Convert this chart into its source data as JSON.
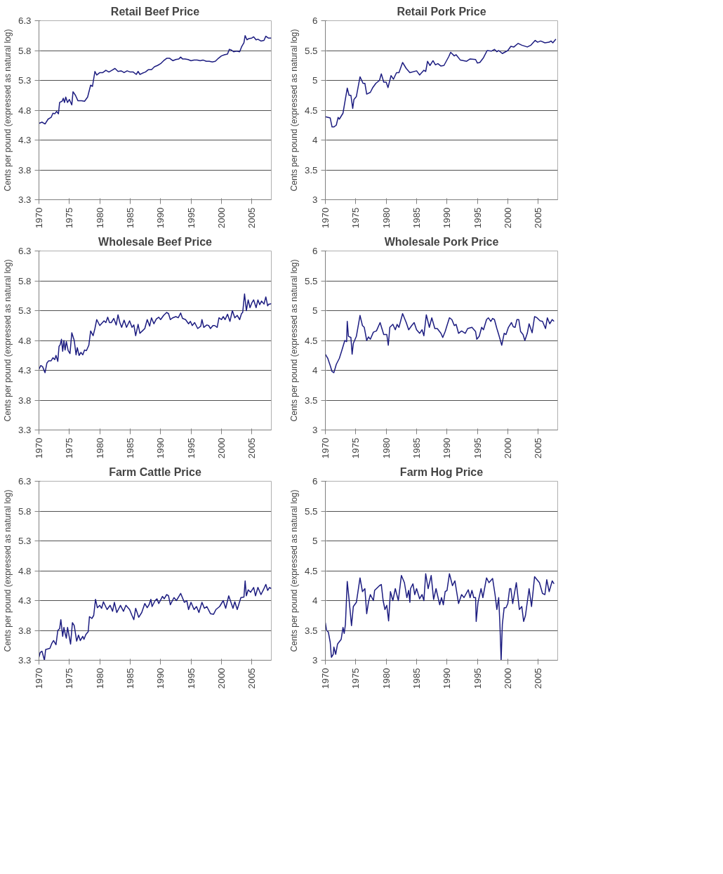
{
  "chart_data": [
    {
      "type": "line",
      "title": "Retail Beef Price",
      "ylabel": "Cents per pound (expressed as natural log)",
      "xlim": [
        1970,
        2008.2
      ],
      "xticks": [
        1970,
        1975,
        1980,
        1985,
        1990,
        1995,
        2000,
        2005
      ],
      "ylim": [
        3.3,
        6.3
      ],
      "yticks": [
        3.3,
        3.8,
        4.3,
        4.8,
        5.3,
        5.8,
        6.3
      ],
      "grid": "y",
      "line_style": "solid",
      "series": [
        {
          "color": "#1c1c80",
          "x": [
            1970,
            1970.5,
            1971,
            1971.5,
            1972,
            1972.3,
            1972.6,
            1972.9,
            1973.2,
            1973.4,
            1973.8,
            1974,
            1974.2,
            1974.4,
            1974.7,
            1975,
            1975.4,
            1975.6,
            1976,
            1976.4,
            1977,
            1977.5,
            1978,
            1978.5,
            1978.8,
            1979.2,
            1979.5,
            1980,
            1980.5,
            1981,
            1981.5,
            1982,
            1982.5,
            1983,
            1983.5,
            1984,
            1984.5,
            1985,
            1985.5,
            1986,
            1986.3,
            1986.6,
            1987,
            1987.5,
            1988,
            1988.5,
            1989,
            1989.5,
            1990,
            1990.5,
            1991,
            1991.5,
            1992,
            1992.5,
            1993,
            1993.3,
            1993.6,
            1994,
            1994.5,
            1995,
            1995.5,
            1996,
            1996.5,
            1997,
            1997.5,
            1998,
            1998.5,
            1999,
            1999.5,
            2000,
            2000.5,
            2001,
            2001.3,
            2001.6,
            2002,
            2002.5,
            2003,
            2003.3,
            2003.7,
            2003.9,
            2004.2,
            2004.5,
            2005,
            2005.3,
            2005.7,
            2006,
            2006.5,
            2007,
            2007.3,
            2007.7,
            2008.2
          ],
          "values": [
            4.58,
            4.6,
            4.57,
            4.65,
            4.68,
            4.75,
            4.74,
            4.78,
            4.74,
            4.93,
            4.95,
            5.0,
            4.93,
            5.02,
            4.93,
            4.98,
            4.89,
            5.11,
            5.05,
            4.96,
            4.96,
            4.95,
            5.02,
            5.22,
            5.2,
            5.45,
            5.39,
            5.43,
            5.43,
            5.47,
            5.44,
            5.47,
            5.5,
            5.45,
            5.46,
            5.43,
            5.46,
            5.44,
            5.44,
            5.4,
            5.45,
            5.4,
            5.42,
            5.44,
            5.48,
            5.48,
            5.53,
            5.55,
            5.58,
            5.63,
            5.67,
            5.67,
            5.63,
            5.65,
            5.66,
            5.69,
            5.66,
            5.66,
            5.65,
            5.63,
            5.64,
            5.64,
            5.63,
            5.64,
            5.62,
            5.62,
            5.61,
            5.62,
            5.67,
            5.71,
            5.73,
            5.74,
            5.82,
            5.81,
            5.78,
            5.79,
            5.78,
            5.86,
            5.93,
            6.05,
            5.98,
            6.0,
            6.01,
            6.03,
            5.98,
            5.99,
            5.96,
            5.97,
            6.04,
            6.01,
            6.01
          ]
        }
      ]
    },
    {
      "type": "line",
      "title": "Retail Pork Price",
      "ylabel": "Cents per pound (expressed as natural log)",
      "xlim": [
        1970,
        2008.2
      ],
      "xticks": [
        1970,
        1975,
        1980,
        1985,
        1990,
        1995,
        2000,
        2005
      ],
      "ylim": [
        3,
        6
      ],
      "yticks": [
        3,
        3.5,
        4,
        4.5,
        5,
        5.5,
        6
      ],
      "grid": "y",
      "line_style": "solid",
      "series": [
        {
          "color": "#1c1c80",
          "x": [
            1970,
            1970.8,
            1971.1,
            1971.4,
            1971.8,
            1972.1,
            1972.3,
            1972.9,
            1973.2,
            1973.6,
            1973.9,
            1974.2,
            1974.5,
            1974.7,
            1975.1,
            1975.7,
            1976.2,
            1976.5,
            1976.8,
            1977.4,
            1977.8,
            1978.3,
            1978.9,
            1979.2,
            1979.6,
            1980,
            1980.3,
            1980.8,
            1981.2,
            1981.7,
            1982.1,
            1982.7,
            1983.3,
            1983.9,
            1985,
            1985.5,
            1986.2,
            1986.5,
            1986.8,
            1987.2,
            1987.7,
            1988.1,
            1988.5,
            1989,
            1989.5,
            1990.3,
            1990.6,
            1991.2,
            1991.5,
            1992.2,
            1993.2,
            1993.8,
            1994.7,
            1995,
            1995.4,
            1996,
            1996.6,
            1997.3,
            1997.8,
            1998.2,
            1998.5,
            1999.1,
            2000,
            2000.5,
            2001,
            2001.7,
            2002.3,
            2003.2,
            2003.8,
            2004.5,
            2004.9,
            2005.4,
            2006.1,
            2006.8,
            2007.1,
            2007.4,
            2007.9
          ],
          "values": [
            4.39,
            4.37,
            4.22,
            4.22,
            4.25,
            4.38,
            4.35,
            4.45,
            4.63,
            4.87,
            4.75,
            4.75,
            4.53,
            4.68,
            4.73,
            5.06,
            4.95,
            4.95,
            4.77,
            4.8,
            4.88,
            4.95,
            5.0,
            5.11,
            4.97,
            4.97,
            4.88,
            5.08,
            5.02,
            5.13,
            5.13,
            5.3,
            5.2,
            5.13,
            5.16,
            5.09,
            5.17,
            5.15,
            5.32,
            5.25,
            5.33,
            5.26,
            5.28,
            5.24,
            5.25,
            5.4,
            5.47,
            5.41,
            5.43,
            5.34,
            5.32,
            5.36,
            5.35,
            5.29,
            5.3,
            5.38,
            5.5,
            5.49,
            5.52,
            5.48,
            5.5,
            5.45,
            5.5,
            5.57,
            5.56,
            5.62,
            5.59,
            5.56,
            5.59,
            5.67,
            5.64,
            5.66,
            5.63,
            5.64,
            5.66,
            5.63,
            5.69
          ]
        }
      ]
    },
    {
      "type": "line",
      "title": "Wholesale Beef Price",
      "ylabel": "Cents per pound (expressed as natural log)",
      "xlim": [
        1970,
        2008.2
      ],
      "xticks": [
        1970,
        1975,
        1980,
        1985,
        1990,
        1995,
        2000,
        2005
      ],
      "ylim": [
        3.3,
        6.3
      ],
      "yticks": [
        3.3,
        3.8,
        4.3,
        4.8,
        5.3,
        5.8,
        6.3
      ],
      "grid": "y",
      "line_style": "solid",
      "series": [
        {
          "color": "#1c1c80",
          "x": [
            1970,
            1970.3,
            1970.6,
            1971,
            1971.3,
            1971.6,
            1972,
            1972.3,
            1972.6,
            1972.8,
            1973.1,
            1973.3,
            1973.5,
            1973.7,
            1973.9,
            1974.1,
            1974.3,
            1974.5,
            1974.8,
            1975.1,
            1975.4,
            1975.8,
            1976.1,
            1976.3,
            1976.6,
            1976.9,
            1977.2,
            1977.5,
            1977.8,
            1978.2,
            1978.5,
            1978.9,
            1979.2,
            1979.5,
            1980,
            1980.7,
            1981,
            1981.3,
            1981.6,
            1981.9,
            1982.3,
            1982.7,
            1983,
            1983.3,
            1983.6,
            1984,
            1984.4,
            1984.9,
            1985.3,
            1985.6,
            1985.9,
            1986.3,
            1986.6,
            1987,
            1987.4,
            1987.8,
            1988.2,
            1988.5,
            1988.9,
            1989.3,
            1989.7,
            1990,
            1990.5,
            1991,
            1991.3,
            1991.6,
            1992,
            1992.5,
            1992.9,
            1993.3,
            1993.6,
            1994.1,
            1994.6,
            1994.9,
            1995.2,
            1995.6,
            1996.1,
            1996.6,
            1996.8,
            1997.1,
            1997.6,
            1997.9,
            1998.2,
            1998.6,
            1998.9,
            1999.3,
            1999.6,
            2000,
            2000.3,
            2000.6,
            2001,
            2001.4,
            2001.8,
            2002.2,
            2002.6,
            2003,
            2003.3,
            2003.5,
            2003.8,
            2004.1,
            2004.4,
            2004.7,
            2005,
            2005.3,
            2005.7,
            2006,
            2006.3,
            2006.6,
            2007,
            2007.3,
            2007.6,
            2007.8,
            2008,
            2008.2
          ],
          "values": [
            4.32,
            4.38,
            4.36,
            4.26,
            4.42,
            4.46,
            4.46,
            4.51,
            4.48,
            4.55,
            4.45,
            4.7,
            4.73,
            4.82,
            4.62,
            4.8,
            4.64,
            4.78,
            4.63,
            4.58,
            4.93,
            4.8,
            4.56,
            4.68,
            4.55,
            4.6,
            4.56,
            4.64,
            4.63,
            4.72,
            4.96,
            4.88,
            5.0,
            5.15,
            5.05,
            5.13,
            5.1,
            5.19,
            5.1,
            5.1,
            5.17,
            5.06,
            5.23,
            5.1,
            5.02,
            5.14,
            5.02,
            5.13,
            5.02,
            5.06,
            4.88,
            5.07,
            4.92,
            4.96,
            5.0,
            5.15,
            5.04,
            5.18,
            5.08,
            5.16,
            5.19,
            5.15,
            5.22,
            5.27,
            5.25,
            5.15,
            5.18,
            5.2,
            5.18,
            5.26,
            5.17,
            5.15,
            5.08,
            5.12,
            5.05,
            5.1,
            5.0,
            5.04,
            5.15,
            5.02,
            5.06,
            5.05,
            5.0,
            5.05,
            5.05,
            5.02,
            5.18,
            5.15,
            5.2,
            5.15,
            5.24,
            5.12,
            5.3,
            5.18,
            5.22,
            5.15,
            5.25,
            5.27,
            5.58,
            5.3,
            5.48,
            5.35,
            5.43,
            5.48,
            5.35,
            5.48,
            5.4,
            5.46,
            5.41,
            5.53,
            5.38,
            5.41,
            5.41,
            5.42
          ]
        }
      ]
    },
    {
      "type": "line",
      "title": "Wholesale Pork Price",
      "ylabel": "Cents per pound (expressed as natural log)",
      "xlim": [
        1970,
        2008.2
      ],
      "xticks": [
        1970,
        1975,
        1980,
        1985,
        1990,
        1995,
        2000,
        2005
      ],
      "ylim": [
        3,
        6
      ],
      "yticks": [
        3,
        3.5,
        4,
        4.5,
        5,
        5.5,
        6
      ],
      "grid": "y",
      "line_style": "solid",
      "series": [
        {
          "color": "#1c1c80",
          "x": [
            1970,
            1970.4,
            1970.8,
            1971.1,
            1971.4,
            1971.8,
            1972.3,
            1972.7,
            1973.2,
            1973.5,
            1973.6,
            1973.8,
            1974.2,
            1974.4,
            1974.6,
            1975.1,
            1975.7,
            1976.1,
            1976.4,
            1976.8,
            1977.1,
            1977.4,
            1977.9,
            1978.4,
            1979,
            1979.6,
            1980.1,
            1980.35,
            1980.6,
            1981.1,
            1981.5,
            1981.8,
            1982.1,
            1982.7,
            1983.3,
            1983.7,
            1984.2,
            1984.6,
            1985,
            1985.5,
            1985.9,
            1986.2,
            1986.6,
            1987.1,
            1987.5,
            1988,
            1988.4,
            1989,
            1989.3,
            1989.7,
            1990,
            1990.4,
            1990.8,
            1991.2,
            1991.5,
            1991.9,
            1992.4,
            1993,
            1993.4,
            1994.1,
            1994.7,
            1994.9,
            1995.3,
            1995.7,
            1996,
            1996.5,
            1996.8,
            1997.2,
            1997.5,
            1997.8,
            1998.2,
            1998.5,
            1999,
            1999.4,
            1999.7,
            2000.1,
            2000.6,
            2000.9,
            2001.2,
            2001.5,
            2001.8,
            2002.1,
            2002.5,
            2002.8,
            2003.2,
            2003.5,
            2004,
            2004.4,
            2004.8,
            2005.3,
            2005.7,
            2006.2,
            2006.5,
            2006.9,
            2007.3,
            2007.6
          ],
          "values": [
            4.27,
            4.2,
            4.08,
            3.98,
            3.96,
            4.1,
            4.2,
            4.33,
            4.5,
            4.48,
            4.82,
            4.57,
            4.55,
            4.27,
            4.45,
            4.57,
            4.92,
            4.75,
            4.72,
            4.5,
            4.56,
            4.52,
            4.64,
            4.66,
            4.8,
            4.6,
            4.6,
            4.42,
            4.72,
            4.77,
            4.68,
            4.77,
            4.72,
            4.95,
            4.8,
            4.68,
            4.75,
            4.8,
            4.68,
            4.62,
            4.68,
            4.58,
            4.93,
            4.72,
            4.88,
            4.7,
            4.7,
            4.62,
            4.55,
            4.65,
            4.75,
            4.88,
            4.85,
            4.75,
            4.77,
            4.62,
            4.66,
            4.62,
            4.7,
            4.72,
            4.65,
            4.52,
            4.57,
            4.72,
            4.68,
            4.85,
            4.88,
            4.82,
            4.87,
            4.85,
            4.7,
            4.6,
            4.42,
            4.62,
            4.6,
            4.72,
            4.8,
            4.73,
            4.72,
            4.85,
            4.85,
            4.65,
            4.6,
            4.5,
            4.62,
            4.78,
            4.63,
            4.9,
            4.88,
            4.83,
            4.82,
            4.7,
            4.88,
            4.78,
            4.85,
            4.82
          ]
        }
      ]
    },
    {
      "type": "line",
      "title": "Farm Cattle Price",
      "ylabel": "Cents per pound (expressed as natural log)",
      "xlim": [
        1970,
        2008.2
      ],
      "xticks": [
        1970,
        1975,
        1980,
        1985,
        1990,
        1995,
        2000,
        2005
      ],
      "ylim": [
        3.3,
        6.3
      ],
      "yticks": [
        3.3,
        3.8,
        4.3,
        4.8,
        5.3,
        5.8,
        6.3
      ],
      "grid": "y",
      "line_style": "solid",
      "series": [
        {
          "color": "#1c1c80",
          "x": [
            1970,
            1970.2,
            1970.5,
            1970.9,
            1971.1,
            1971.8,
            1972.1,
            1972.4,
            1972.8,
            1973.1,
            1973.4,
            1973.6,
            1973.9,
            1974.1,
            1974.3,
            1974.5,
            1974.7,
            1975.2,
            1975.5,
            1975.8,
            1976.2,
            1976.5,
            1976.8,
            1977.2,
            1977.4,
            1977.7,
            1978.1,
            1978.3,
            1978.7,
            1979,
            1979.3,
            1979.6,
            1980,
            1980.3,
            1980.6,
            1981.2,
            1981.7,
            1982.1,
            1982.4,
            1982.8,
            1983.4,
            1983.9,
            1984.3,
            1984.9,
            1985.3,
            1985.6,
            1985.9,
            1986.4,
            1986.9,
            1987.4,
            1987.8,
            1988.1,
            1988.4,
            1988.6,
            1989.1,
            1989.4,
            1989.7,
            1990.3,
            1990.6,
            1991,
            1991.3,
            1991.6,
            1992.2,
            1992.6,
            1993.3,
            1993.9,
            1994.3,
            1994.6,
            1995,
            1995.5,
            1995.9,
            1996.3,
            1996.8,
            1997.2,
            1997.6,
            1998.2,
            1998.7,
            1999.1,
            1999.7,
            2000,
            2000.3,
            2000.7,
            2001.2,
            2001.9,
            2002.2,
            2002.6,
            2003.2,
            2003.7,
            2003.9,
            2004.1,
            2004.4,
            2004.8,
            2005.3,
            2005.6,
            2006,
            2006.5,
            2006.9,
            2007.3,
            2007.6,
            2007.9,
            2008.2
          ],
          "values": [
            3.35,
            3.43,
            3.45,
            3.3,
            3.48,
            3.5,
            3.58,
            3.63,
            3.56,
            3.8,
            3.83,
            3.98,
            3.7,
            3.85,
            3.75,
            3.67,
            3.85,
            3.57,
            3.93,
            3.88,
            3.62,
            3.72,
            3.63,
            3.7,
            3.65,
            3.73,
            3.78,
            4.03,
            4.0,
            4.05,
            4.32,
            4.18,
            4.22,
            4.17,
            4.28,
            4.15,
            4.22,
            4.12,
            4.27,
            4.1,
            4.22,
            4.12,
            4.22,
            4.15,
            4.05,
            3.98,
            4.17,
            4.02,
            4.1,
            4.25,
            4.18,
            4.23,
            4.32,
            4.2,
            4.3,
            4.33,
            4.25,
            4.37,
            4.33,
            4.4,
            4.38,
            4.23,
            4.35,
            4.3,
            4.42,
            4.27,
            4.3,
            4.15,
            4.27,
            4.15,
            4.2,
            4.1,
            4.27,
            4.17,
            4.2,
            4.08,
            4.07,
            4.15,
            4.2,
            4.25,
            4.3,
            4.17,
            4.38,
            4.17,
            4.28,
            4.15,
            4.35,
            4.36,
            4.63,
            4.38,
            4.48,
            4.44,
            4.52,
            4.38,
            4.52,
            4.4,
            4.48,
            4.57,
            4.47,
            4.52,
            4.5
          ]
        }
      ]
    },
    {
      "type": "line",
      "title": "Farm Hog Price",
      "ylabel": "Cents per pound (expressed as natural log)",
      "xlim": [
        1970,
        2008.2
      ],
      "xticks": [
        1970,
        1975,
        1980,
        1985,
        1990,
        1995,
        2000,
        2005
      ],
      "ylim": [
        3,
        6
      ],
      "yticks": [
        3,
        3.5,
        4,
        4.5,
        5,
        5.5,
        6
      ],
      "grid": "y",
      "line_style": "solid",
      "series": [
        {
          "color": "#1c1c80",
          "x": [
            1970,
            1970.2,
            1970.5,
            1970.8,
            1971,
            1971.3,
            1971.4,
            1971.7,
            1972,
            1972.6,
            1972.9,
            1973.1,
            1973.3,
            1973.6,
            1973.9,
            1974.3,
            1974.6,
            1975.1,
            1975.7,
            1976.1,
            1976.5,
            1976.8,
            1977.1,
            1977.4,
            1977.9,
            1978.1,
            1978.9,
            1979.2,
            1979.5,
            1979.8,
            1980.1,
            1980.4,
            1980.7,
            1981.1,
            1981.5,
            1982,
            1982.5,
            1983,
            1983.4,
            1983.7,
            1983.9,
            1984,
            1984.4,
            1984.7,
            1985,
            1985.5,
            1985.9,
            1986.2,
            1986.5,
            1986.9,
            1987.4,
            1987.8,
            1988.2,
            1988.8,
            1989.1,
            1989.4,
            1989.7,
            1990,
            1990.4,
            1990.9,
            1991.3,
            1991.9,
            1992.4,
            1992.8,
            1993.5,
            1993.8,
            1994.1,
            1994.4,
            1994.7,
            1994.8,
            1995.1,
            1995.6,
            1995.9,
            1996.5,
            1996.9,
            1997.5,
            1997.9,
            1998.2,
            1998.5,
            1998.7,
            1998.9,
            1999.1,
            1999.4,
            1999.7,
            2000,
            2000.3,
            2000.5,
            2000.8,
            2001.4,
            2001.9,
            2002.3,
            2002.6,
            2002.9,
            2003.5,
            2003.9,
            2004.4,
            2004.8,
            2005.2,
            2005.7,
            2006.1,
            2006.4,
            2006.8,
            2007.3,
            2007.6
          ],
          "values": [
            3.63,
            3.5,
            3.47,
            3.3,
            3.05,
            3.1,
            3.22,
            3.1,
            3.27,
            3.35,
            3.55,
            3.45,
            3.6,
            4.32,
            4.02,
            3.58,
            3.9,
            3.97,
            4.38,
            4.15,
            4.2,
            3.78,
            3.98,
            4.1,
            4.0,
            4.17,
            4.25,
            4.27,
            4.0,
            3.85,
            3.92,
            3.66,
            4.15,
            4.0,
            4.2,
            4.0,
            4.42,
            4.3,
            4.05,
            4.17,
            3.97,
            4.2,
            4.28,
            4.1,
            4.2,
            4.03,
            4.1,
            4.0,
            4.45,
            4.2,
            4.42,
            4.02,
            4.2,
            3.93,
            4.05,
            3.93,
            4.15,
            4.17,
            4.45,
            4.25,
            4.33,
            3.95,
            4.1,
            4.05,
            4.18,
            4.05,
            4.17,
            4.05,
            4.05,
            3.65,
            3.97,
            4.2,
            4.05,
            4.38,
            4.3,
            4.37,
            4.1,
            3.85,
            4.05,
            3.6,
            3.0,
            3.6,
            3.88,
            3.88,
            3.95,
            4.2,
            4.2,
            3.95,
            4.3,
            3.85,
            3.9,
            3.65,
            3.75,
            4.2,
            3.9,
            4.4,
            4.35,
            4.3,
            4.12,
            4.1,
            4.35,
            4.15,
            4.33,
            4.28
          ]
        }
      ]
    }
  ]
}
